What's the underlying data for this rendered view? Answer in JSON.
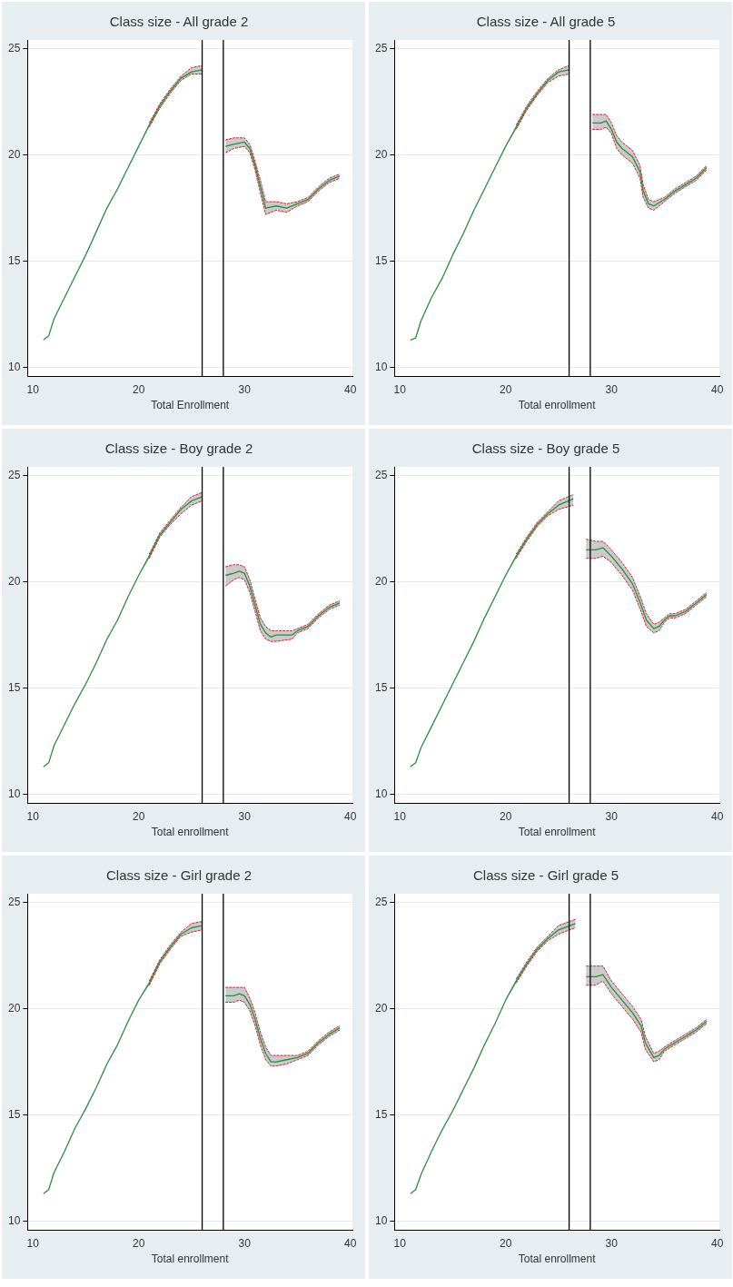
{
  "chart_data": [
    {
      "type": "line",
      "title": "Class size - All grade 2",
      "xlabel": "Total Enrollment",
      "xlim": [
        9.5,
        40.2
      ],
      "ylim": [
        9.6,
        25.4
      ],
      "xticks": [
        10,
        20,
        30,
        40
      ],
      "yticks": [
        10,
        15,
        20,
        25
      ],
      "grid": "y",
      "legend": false,
      "marker": "none",
      "line_style": "solid",
      "ref_lines": [
        {
          "axis": "x",
          "value": 26,
          "color": "#000000"
        },
        {
          "axis": "x",
          "value": 28,
          "color": "#000000"
        }
      ],
      "series": [
        {
          "color": "#2e8b3e",
          "x": [
            11,
            11.5,
            12,
            13,
            14,
            15,
            16,
            17,
            18,
            19,
            20,
            21,
            22,
            23,
            24,
            25,
            26
          ],
          "values": [
            11.3,
            11.5,
            12.3,
            13.3,
            14.3,
            15.3,
            16.4,
            17.5,
            18.4,
            19.4,
            20.4,
            21.4,
            22.3,
            23.0,
            23.6,
            23.9,
            24.0
          ],
          "lower": [
            11.3,
            11.5,
            12.3,
            13.3,
            14.3,
            15.3,
            16.4,
            17.5,
            18.4,
            19.4,
            20.4,
            21.3,
            22.2,
            22.9,
            23.5,
            23.8,
            23.8
          ],
          "upper": [
            11.3,
            11.5,
            12.3,
            13.3,
            14.3,
            15.3,
            16.4,
            17.5,
            18.4,
            19.4,
            20.4,
            21.5,
            22.4,
            23.1,
            23.7,
            24.1,
            24.2
          ]
        },
        {
          "color": "#d02030",
          "line_style": "dashed",
          "x": [
            21,
            22,
            23,
            24,
            25,
            26
          ],
          "values": [
            21.3,
            22.2,
            22.9,
            23.5,
            23.8,
            23.8
          ]
        },
        {
          "color": "#d02030",
          "line_style": "dashed",
          "x": [
            21,
            22,
            23,
            24,
            25,
            26
          ],
          "values": [
            21.5,
            22.4,
            23.1,
            23.7,
            24.1,
            24.2
          ]
        },
        {
          "color": "#2e8b3e",
          "x": [
            28.2,
            29,
            30,
            30.5,
            31,
            31.5,
            32,
            33,
            34,
            35,
            36,
            37,
            38,
            39
          ],
          "values": [
            20.4,
            20.5,
            20.6,
            20.3,
            19.5,
            18.5,
            17.5,
            17.6,
            17.5,
            17.7,
            17.9,
            18.4,
            18.8,
            19.0
          ],
          "lower": [
            20.1,
            20.3,
            20.4,
            20.1,
            19.3,
            18.2,
            17.2,
            17.4,
            17.3,
            17.6,
            17.8,
            18.3,
            18.7,
            18.9
          ],
          "upper": [
            20.7,
            20.8,
            20.8,
            20.5,
            19.7,
            18.8,
            17.8,
            17.8,
            17.7,
            17.8,
            18.0,
            18.5,
            18.9,
            19.1
          ]
        },
        {
          "color": "#d02030",
          "line_style": "dashed",
          "x": [
            28.2,
            29,
            30,
            30.5,
            31,
            31.5,
            32,
            33,
            34,
            35,
            36,
            37,
            38,
            39
          ],
          "values": [
            20.1,
            20.3,
            20.4,
            20.1,
            19.3,
            18.2,
            17.2,
            17.4,
            17.3,
            17.6,
            17.8,
            18.3,
            18.7,
            18.9
          ]
        },
        {
          "color": "#d02030",
          "line_style": "dashed",
          "x": [
            28.2,
            29,
            30,
            30.5,
            31,
            31.5,
            32,
            33,
            34,
            35,
            36,
            37,
            38,
            39
          ],
          "values": [
            20.7,
            20.8,
            20.8,
            20.5,
            19.7,
            18.8,
            17.8,
            17.8,
            17.7,
            17.8,
            18.0,
            18.5,
            18.9,
            19.1
          ]
        }
      ]
    },
    {
      "type": "line",
      "title": "Class size - All grade 5",
      "xlabel": "Total enrollment",
      "xlim": [
        9.5,
        40.2
      ],
      "ylim": [
        9.6,
        25.4
      ],
      "xticks": [
        10,
        20,
        30,
        40
      ],
      "yticks": [
        10,
        15,
        20,
        25
      ],
      "grid": "y",
      "legend": false,
      "marker": "none",
      "line_style": "solid",
      "ref_lines": [
        {
          "axis": "x",
          "value": 26,
          "color": "#000000"
        },
        {
          "axis": "x",
          "value": 28,
          "color": "#000000"
        }
      ],
      "series": [
        {
          "color": "#2e8b3e",
          "x": [
            11,
            11.5,
            12,
            13,
            14,
            15,
            16,
            17,
            18,
            19,
            20,
            21,
            22,
            23,
            24,
            25,
            26
          ],
          "values": [
            11.3,
            11.4,
            12.2,
            13.3,
            14.2,
            15.3,
            16.3,
            17.4,
            18.4,
            19.4,
            20.4,
            21.3,
            22.2,
            22.9,
            23.5,
            23.9,
            24.0
          ],
          "lower": [
            11.3,
            11.4,
            12.2,
            13.3,
            14.2,
            15.3,
            16.3,
            17.4,
            18.4,
            19.4,
            20.4,
            21.2,
            22.1,
            22.8,
            23.4,
            23.7,
            23.8
          ],
          "upper": [
            11.3,
            11.4,
            12.2,
            13.3,
            14.2,
            15.3,
            16.3,
            17.4,
            18.4,
            19.4,
            20.4,
            21.4,
            22.3,
            23.0,
            23.6,
            24.0,
            24.2
          ]
        },
        {
          "color": "#d02030",
          "line_style": "dashed",
          "x": [
            21,
            22,
            23,
            24,
            25,
            26
          ],
          "values": [
            21.2,
            22.1,
            22.8,
            23.4,
            23.7,
            23.8
          ]
        },
        {
          "color": "#d02030",
          "line_style": "dashed",
          "x": [
            21,
            22,
            23,
            24,
            25,
            26
          ],
          "values": [
            21.4,
            22.3,
            23.0,
            23.6,
            24.0,
            24.2
          ]
        },
        {
          "color": "#2e8b3e",
          "x": [
            28.2,
            29,
            29.5,
            30,
            30.5,
            31,
            32,
            32.7,
            33,
            33.5,
            34,
            35,
            36,
            37,
            38,
            39
          ],
          "values": [
            21.5,
            21.5,
            21.6,
            21.2,
            20.6,
            20.3,
            19.9,
            19.2,
            18.3,
            17.7,
            17.6,
            17.9,
            18.3,
            18.6,
            18.9,
            19.4
          ],
          "lower": [
            21.2,
            21.2,
            21.3,
            21.0,
            20.3,
            20.0,
            19.6,
            18.9,
            18.0,
            17.5,
            17.4,
            17.8,
            18.2,
            18.5,
            18.8,
            19.3
          ],
          "upper": [
            21.9,
            21.9,
            21.9,
            21.5,
            20.9,
            20.6,
            20.2,
            19.5,
            18.6,
            17.9,
            17.8,
            18.0,
            18.4,
            18.7,
            19.0,
            19.5
          ]
        },
        {
          "color": "#d02030",
          "line_style": "dashed",
          "x": [
            28.2,
            29,
            29.5,
            30,
            30.5,
            31,
            32,
            32.7,
            33,
            33.5,
            34,
            35,
            36,
            37,
            38,
            39
          ],
          "values": [
            21.2,
            21.2,
            21.3,
            21.0,
            20.3,
            20.0,
            19.6,
            18.9,
            18.0,
            17.5,
            17.4,
            17.8,
            18.2,
            18.5,
            18.8,
            19.3
          ]
        },
        {
          "color": "#d02030",
          "line_style": "dashed",
          "x": [
            28.2,
            29,
            29.5,
            30,
            30.5,
            31,
            32,
            32.7,
            33,
            33.5,
            34,
            35,
            36,
            37,
            38,
            39
          ],
          "values": [
            21.9,
            21.9,
            21.9,
            21.5,
            20.9,
            20.6,
            20.2,
            19.5,
            18.6,
            17.9,
            17.8,
            18.0,
            18.4,
            18.7,
            19.0,
            19.5
          ]
        }
      ]
    },
    {
      "type": "line",
      "title": "Class size - Boy grade 2",
      "xlabel": "Total enrollment",
      "xlim": [
        9.5,
        40.2
      ],
      "ylim": [
        9.6,
        25.4
      ],
      "xticks": [
        10,
        20,
        30,
        40
      ],
      "yticks": [
        10,
        15,
        20,
        25
      ],
      "grid": "y",
      "legend": false,
      "marker": "none",
      "line_style": "solid",
      "ref_lines": [
        {
          "axis": "x",
          "value": 26,
          "color": "#000000"
        },
        {
          "axis": "x",
          "value": 28,
          "color": "#000000"
        }
      ],
      "series": [
        {
          "color": "#2e8b3e",
          "x": [
            11,
            11.5,
            12,
            13,
            14,
            15,
            16,
            17,
            18,
            19,
            20,
            21,
            22,
            23,
            24,
            25,
            26
          ],
          "values": [
            11.3,
            11.5,
            12.3,
            13.3,
            14.3,
            15.2,
            16.2,
            17.3,
            18.2,
            19.3,
            20.3,
            21.2,
            22.2,
            22.8,
            23.4,
            23.8,
            24.0
          ],
          "lower": [
            11.3,
            11.5,
            12.3,
            13.3,
            14.3,
            15.2,
            16.2,
            17.3,
            18.2,
            19.3,
            20.3,
            21.1,
            22.1,
            22.7,
            23.2,
            23.6,
            23.8
          ],
          "upper": [
            11.3,
            11.5,
            12.3,
            13.3,
            14.3,
            15.2,
            16.2,
            17.3,
            18.2,
            19.3,
            20.3,
            21.3,
            22.3,
            22.9,
            23.5,
            24.0,
            24.2
          ]
        },
        {
          "color": "#d02030",
          "line_style": "dashed",
          "x": [
            21,
            22,
            23,
            24,
            25,
            26
          ],
          "values": [
            21.1,
            22.1,
            22.7,
            23.2,
            23.6,
            23.8
          ]
        },
        {
          "color": "#d02030",
          "line_style": "dashed",
          "x": [
            21,
            22,
            23,
            24,
            25,
            26
          ],
          "values": [
            21.3,
            22.3,
            22.9,
            23.5,
            24.0,
            24.2
          ]
        },
        {
          "color": "#2e8b3e",
          "x": [
            28.2,
            29,
            29.5,
            30,
            30.5,
            31,
            31.5,
            32,
            32.5,
            33,
            34.5,
            35,
            36,
            37,
            38,
            39
          ],
          "values": [
            20.3,
            20.4,
            20.5,
            20.4,
            19.8,
            18.9,
            18.0,
            17.6,
            17.4,
            17.5,
            17.5,
            17.7,
            17.9,
            18.4,
            18.8,
            19.0
          ],
          "lower": [
            19.8,
            20.1,
            20.2,
            20.1,
            19.5,
            18.6,
            17.7,
            17.3,
            17.2,
            17.2,
            17.3,
            17.6,
            17.8,
            18.3,
            18.7,
            18.9
          ],
          "upper": [
            20.7,
            20.8,
            20.8,
            20.7,
            20.1,
            19.2,
            18.3,
            17.9,
            17.7,
            17.7,
            17.7,
            17.8,
            18.0,
            18.5,
            18.9,
            19.1
          ]
        },
        {
          "color": "#d02030",
          "line_style": "dashed",
          "x": [
            28.2,
            29,
            29.5,
            30,
            30.5,
            31,
            31.5,
            32,
            32.5,
            33,
            34.5,
            35,
            36,
            37,
            38,
            39
          ],
          "values": [
            19.8,
            20.1,
            20.2,
            20.1,
            19.5,
            18.6,
            17.7,
            17.3,
            17.2,
            17.2,
            17.3,
            17.6,
            17.8,
            18.3,
            18.7,
            18.9
          ]
        },
        {
          "color": "#d02030",
          "line_style": "dashed",
          "x": [
            28.2,
            29,
            29.5,
            30,
            30.5,
            31,
            31.5,
            32,
            32.5,
            33,
            34.5,
            35,
            36,
            37,
            38,
            39
          ],
          "values": [
            20.7,
            20.8,
            20.8,
            20.7,
            20.1,
            19.2,
            18.3,
            17.9,
            17.7,
            17.7,
            17.7,
            17.8,
            18.0,
            18.5,
            18.9,
            19.1
          ]
        }
      ]
    },
    {
      "type": "line",
      "title": "Class size - Boy grade 5",
      "xlabel": "Total enrollment",
      "xlim": [
        9.5,
        40.2
      ],
      "ylim": [
        9.6,
        25.4
      ],
      "xticks": [
        10,
        20,
        30,
        40
      ],
      "yticks": [
        10,
        15,
        20,
        25
      ],
      "grid": "y",
      "legend": false,
      "marker": "none",
      "line_style": "solid",
      "ref_lines": [
        {
          "axis": "x",
          "value": 26,
          "color": "#000000"
        },
        {
          "axis": "x",
          "value": 28,
          "color": "#000000"
        }
      ],
      "series": [
        {
          "color": "#2e8b3e",
          "x": [
            11,
            11.5,
            12,
            13,
            14,
            15,
            16,
            17,
            18,
            19,
            20,
            21,
            22,
            23,
            24,
            25,
            26.4
          ],
          "values": [
            11.3,
            11.5,
            12.2,
            13.2,
            14.2,
            15.2,
            16.2,
            17.2,
            18.3,
            19.3,
            20.3,
            21.2,
            22.0,
            22.7,
            23.2,
            23.6,
            23.9
          ],
          "lower": [
            11.3,
            11.5,
            12.2,
            13.2,
            14.2,
            15.2,
            16.2,
            17.2,
            18.3,
            19.3,
            20.3,
            21.1,
            21.9,
            22.6,
            23.1,
            23.4,
            23.6
          ],
          "upper": [
            11.3,
            11.5,
            12.2,
            13.2,
            14.2,
            15.2,
            16.2,
            17.2,
            18.3,
            19.3,
            20.3,
            21.3,
            22.1,
            22.8,
            23.3,
            23.8,
            24.1
          ]
        },
        {
          "color": "#d02030",
          "line_style": "dashed",
          "x": [
            21,
            22,
            23,
            24,
            25,
            26.4
          ],
          "values": [
            21.1,
            21.9,
            22.6,
            23.1,
            23.4,
            23.6
          ]
        },
        {
          "color": "#d02030",
          "line_style": "dashed",
          "x": [
            21,
            22,
            23,
            24,
            25,
            26.4
          ],
          "values": [
            21.3,
            22.1,
            22.8,
            23.3,
            23.8,
            24.1
          ]
        },
        {
          "color": "#2e8b3e",
          "x": [
            27.6,
            28.5,
            29.2,
            30,
            31,
            32,
            32.8,
            33.3,
            34,
            34.5,
            35,
            35.5,
            36,
            37,
            38,
            39
          ],
          "values": [
            21.5,
            21.5,
            21.6,
            21.2,
            20.6,
            19.9,
            18.9,
            18.2,
            17.8,
            17.9,
            18.2,
            18.4,
            18.4,
            18.6,
            19.0,
            19.4
          ],
          "lower": [
            21.1,
            21.1,
            21.2,
            20.9,
            20.3,
            19.6,
            18.6,
            17.9,
            17.6,
            17.7,
            18.1,
            18.3,
            18.3,
            18.5,
            18.9,
            19.3
          ],
          "upper": [
            22.0,
            21.9,
            21.9,
            21.5,
            20.9,
            20.2,
            19.2,
            18.5,
            18.0,
            18.1,
            18.3,
            18.5,
            18.5,
            18.7,
            19.1,
            19.5
          ]
        },
        {
          "color": "#d02030",
          "line_style": "dashed",
          "x": [
            27.6,
            28.5,
            29.2,
            30,
            31,
            32,
            32.8,
            33.3,
            34,
            34.5,
            35,
            35.5,
            36,
            37,
            38,
            39
          ],
          "values": [
            21.1,
            21.1,
            21.2,
            20.9,
            20.3,
            19.6,
            18.6,
            17.9,
            17.6,
            17.7,
            18.1,
            18.3,
            18.3,
            18.5,
            18.9,
            19.3
          ]
        },
        {
          "color": "#d02030",
          "line_style": "dashed",
          "x": [
            27.6,
            28.5,
            29.2,
            30,
            31,
            32,
            32.8,
            33.3,
            34,
            34.5,
            35,
            35.5,
            36,
            37,
            38,
            39
          ],
          "values": [
            22.0,
            21.9,
            21.9,
            21.5,
            20.9,
            20.2,
            19.2,
            18.5,
            18.0,
            18.1,
            18.3,
            18.5,
            18.5,
            18.7,
            19.1,
            19.5
          ]
        }
      ]
    },
    {
      "type": "line",
      "title": "Class size - Girl grade 2",
      "xlabel": "Total enrollment",
      "xlim": [
        9.5,
        40.2
      ],
      "ylim": [
        9.6,
        25.4
      ],
      "xticks": [
        10,
        20,
        30,
        40
      ],
      "yticks": [
        10,
        15,
        20,
        25
      ],
      "grid": "y",
      "legend": false,
      "marker": "none",
      "line_style": "solid",
      "ref_lines": [
        {
          "axis": "x",
          "value": 26,
          "color": "#000000"
        },
        {
          "axis": "x",
          "value": 28,
          "color": "#000000"
        }
      ],
      "series": [
        {
          "color": "#2e8b3e",
          "x": [
            11,
            11.5,
            12,
            13,
            14,
            15,
            16,
            17,
            18,
            19,
            20,
            21,
            22,
            23,
            24,
            25,
            26
          ],
          "values": [
            11.3,
            11.5,
            12.3,
            13.3,
            14.4,
            15.3,
            16.3,
            17.4,
            18.3,
            19.4,
            20.4,
            21.2,
            22.2,
            22.9,
            23.5,
            23.8,
            23.9
          ],
          "lower": [
            11.3,
            11.5,
            12.3,
            13.3,
            14.4,
            15.3,
            16.3,
            17.4,
            18.3,
            19.4,
            20.4,
            21.1,
            22.1,
            22.8,
            23.4,
            23.6,
            23.7
          ],
          "upper": [
            11.3,
            11.5,
            12.3,
            13.3,
            14.4,
            15.3,
            16.3,
            17.4,
            18.3,
            19.4,
            20.4,
            21.3,
            22.3,
            23.0,
            23.6,
            24.0,
            24.1
          ]
        },
        {
          "color": "#d02030",
          "line_style": "dashed",
          "x": [
            21,
            22,
            23,
            24,
            25,
            26
          ],
          "values": [
            21.1,
            22.1,
            22.8,
            23.4,
            23.6,
            23.7
          ]
        },
        {
          "color": "#d02030",
          "line_style": "dashed",
          "x": [
            21,
            22,
            23,
            24,
            25,
            26
          ],
          "values": [
            21.3,
            22.3,
            23.0,
            23.6,
            24.0,
            24.1
          ]
        },
        {
          "color": "#2e8b3e",
          "x": [
            28.2,
            29,
            29.5,
            30,
            30.5,
            31,
            31.5,
            32,
            32.5,
            33,
            34,
            35,
            36,
            37,
            38,
            39
          ],
          "values": [
            20.6,
            20.6,
            20.7,
            20.6,
            20.2,
            19.5,
            18.6,
            17.9,
            17.5,
            17.5,
            17.6,
            17.7,
            17.9,
            18.4,
            18.8,
            19.1
          ],
          "lower": [
            20.3,
            20.3,
            20.4,
            20.3,
            19.9,
            19.2,
            18.3,
            17.6,
            17.3,
            17.3,
            17.4,
            17.6,
            17.8,
            18.3,
            18.7,
            19.0
          ],
          "upper": [
            21.0,
            21.0,
            21.0,
            21.0,
            20.5,
            19.8,
            18.9,
            18.2,
            17.8,
            17.8,
            17.8,
            17.8,
            18.0,
            18.5,
            18.9,
            19.2
          ]
        },
        {
          "color": "#d02030",
          "line_style": "dashed",
          "x": [
            28.2,
            29,
            29.5,
            30,
            30.5,
            31,
            31.5,
            32,
            32.5,
            33,
            34,
            35,
            36,
            37,
            38,
            39
          ],
          "values": [
            20.3,
            20.3,
            20.4,
            20.3,
            19.9,
            19.2,
            18.3,
            17.6,
            17.3,
            17.3,
            17.4,
            17.6,
            17.8,
            18.3,
            18.7,
            19.0
          ]
        },
        {
          "color": "#d02030",
          "line_style": "dashed",
          "x": [
            28.2,
            29,
            29.5,
            30,
            30.5,
            31,
            31.5,
            32,
            32.5,
            33,
            34,
            35,
            36,
            37,
            38,
            39
          ],
          "values": [
            21.0,
            21.0,
            21.0,
            21.0,
            20.5,
            19.8,
            18.9,
            18.2,
            17.8,
            17.8,
            17.8,
            17.8,
            18.0,
            18.5,
            18.9,
            19.2
          ]
        }
      ]
    },
    {
      "type": "line",
      "title": "Class size - Girl grade 5",
      "xlabel": "Total enrollment",
      "xlim": [
        9.5,
        40.2
      ],
      "ylim": [
        9.6,
        25.4
      ],
      "xticks": [
        10,
        20,
        30,
        40
      ],
      "yticks": [
        10,
        15,
        20,
        25
      ],
      "grid": "y",
      "legend": false,
      "marker": "none",
      "line_style": "solid",
      "ref_lines": [
        {
          "axis": "x",
          "value": 26,
          "color": "#000000"
        },
        {
          "axis": "x",
          "value": 28,
          "color": "#000000"
        }
      ],
      "series": [
        {
          "color": "#2e8b3e",
          "x": [
            11,
            11.5,
            12,
            13,
            14,
            15,
            16,
            17,
            18,
            19,
            20,
            21,
            22,
            23,
            24,
            25,
            26.6
          ],
          "values": [
            11.3,
            11.5,
            12.2,
            13.3,
            14.3,
            15.2,
            16.2,
            17.2,
            18.3,
            19.3,
            20.4,
            21.3,
            22.1,
            22.8,
            23.3,
            23.7,
            24.0
          ],
          "lower": [
            11.3,
            11.5,
            12.2,
            13.3,
            14.3,
            15.2,
            16.2,
            17.2,
            18.3,
            19.3,
            20.4,
            21.2,
            22.0,
            22.7,
            23.2,
            23.5,
            23.8
          ],
          "upper": [
            11.3,
            11.5,
            12.2,
            13.3,
            14.3,
            15.2,
            16.2,
            17.2,
            18.3,
            19.3,
            20.4,
            21.4,
            22.2,
            22.9,
            23.4,
            23.9,
            24.2
          ]
        },
        {
          "color": "#d02030",
          "line_style": "dashed",
          "x": [
            21,
            22,
            23,
            24,
            25,
            26.6
          ],
          "values": [
            21.2,
            22.0,
            22.7,
            23.2,
            23.5,
            23.8
          ]
        },
        {
          "color": "#d02030",
          "line_style": "dashed",
          "x": [
            21,
            22,
            23,
            24,
            25,
            26.6
          ],
          "values": [
            21.4,
            22.2,
            22.9,
            23.4,
            23.9,
            24.2
          ]
        },
        {
          "color": "#2e8b3e",
          "x": [
            27.6,
            28.5,
            29.2,
            30,
            31,
            32,
            32.8,
            33.2,
            34,
            34.5,
            35,
            36,
            37,
            38,
            39
          ],
          "values": [
            21.5,
            21.5,
            21.6,
            21.0,
            20.4,
            19.8,
            19.2,
            18.4,
            17.7,
            17.8,
            18.1,
            18.4,
            18.7,
            19.0,
            19.4
          ],
          "lower": [
            21.1,
            21.1,
            21.3,
            20.7,
            20.1,
            19.5,
            18.9,
            18.1,
            17.5,
            17.6,
            18.0,
            18.3,
            18.6,
            18.9,
            19.3
          ],
          "upper": [
            22.0,
            22.0,
            22.0,
            21.3,
            20.7,
            20.1,
            19.5,
            18.7,
            17.9,
            18.0,
            18.2,
            18.5,
            18.8,
            19.1,
            19.5
          ]
        },
        {
          "color": "#d02030",
          "line_style": "dashed",
          "x": [
            27.6,
            28.5,
            29.2,
            30,
            31,
            32,
            32.8,
            33.2,
            34,
            34.5,
            35,
            36,
            37,
            38,
            39
          ],
          "values": [
            21.1,
            21.1,
            21.3,
            20.7,
            20.1,
            19.5,
            18.9,
            18.1,
            17.5,
            17.6,
            18.0,
            18.3,
            18.6,
            18.9,
            19.3
          ]
        },
        {
          "color": "#d02030",
          "line_style": "dashed",
          "x": [
            27.6,
            28.5,
            29.2,
            30,
            31,
            32,
            32.8,
            33.2,
            34,
            34.5,
            35,
            36,
            37,
            38,
            39
          ],
          "values": [
            22.0,
            22.0,
            22.0,
            21.3,
            20.7,
            20.1,
            19.5,
            18.7,
            17.9,
            18.0,
            18.2,
            18.5,
            18.8,
            19.1,
            19.5
          ]
        }
      ]
    }
  ]
}
